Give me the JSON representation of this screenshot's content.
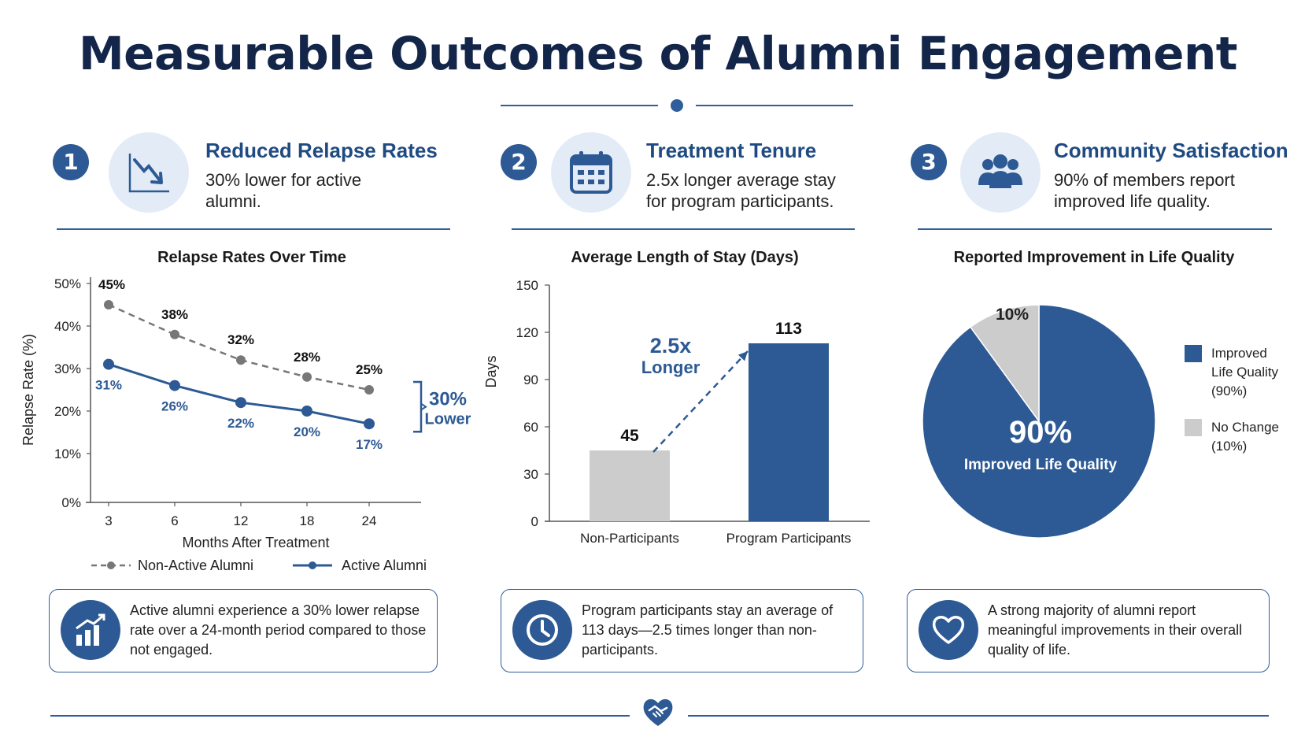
{
  "title": "Measurable Outcomes of Alumni Engagement",
  "colors": {
    "primary": "#2d5a94",
    "navy": "#13264a",
    "gray": "#cccccc",
    "dashed": "#777777"
  },
  "sections": [
    {
      "number": "1",
      "icon": "trend-down-icon",
      "heading": "Reduced Relapse Rates",
      "text": "30% lower for active alumni.",
      "note": "Active alumni experience a 30% lower relapse rate over a 24-month period compared to those not engaged.",
      "note_icon": "bar-chart-up-icon"
    },
    {
      "number": "2",
      "icon": "calendar-icon",
      "heading": "Treatment Tenure",
      "text": "2.5x longer average stay for program participants.",
      "note": "Program participants stay an average of 113 days—2.5 times longer than non-participants.",
      "note_icon": "clock-icon"
    },
    {
      "number": "3",
      "icon": "people-group-icon",
      "heading": "Community Satisfaction",
      "text": "90% of members report improved life quality.",
      "note": "A strong majority of alumni report meaningful improvements in their overall quality of life.",
      "note_icon": "heart-icon"
    }
  ],
  "footer_icon": "heart-handshake-icon",
  "chart_data": [
    {
      "type": "line",
      "title": "Relapse Rates Over Time",
      "xlabel": "Months After Treatment",
      "ylabel": "Relapse Rate (%)",
      "categories": [
        "3",
        "6",
        "12",
        "18",
        "24"
      ],
      "ylim": [
        0,
        50
      ],
      "yticks": [
        "0%",
        "10%",
        "20%",
        "30%",
        "40%",
        "50%"
      ],
      "series": [
        {
          "name": "Non-Active Alumni",
          "values": [
            45,
            38,
            32,
            28,
            25
          ],
          "labels": [
            "45%",
            "38%",
            "32%",
            "28%",
            "25%"
          ],
          "color": "#777777",
          "style": "dashed"
        },
        {
          "name": "Active Alumni",
          "values": [
            31,
            26,
            22,
            20,
            17
          ],
          "labels": [
            "31%",
            "26%",
            "22%",
            "20%",
            "17%"
          ],
          "color": "#2d5a94",
          "style": "solid"
        }
      ],
      "annotation": {
        "value": "30%",
        "text": "Lower"
      },
      "legend": "bottom"
    },
    {
      "type": "bar",
      "title": "Average Length of Stay (Days)",
      "ylabel": "Days",
      "categories": [
        "Non-Participants",
        "Program Participants"
      ],
      "values": [
        45,
        113
      ],
      "value_labels": [
        "45",
        "113"
      ],
      "colors": [
        "#cccccc",
        "#2d5a94"
      ],
      "ylim": [
        0,
        150
      ],
      "yticks": [
        "0",
        "30",
        "60",
        "90",
        "120",
        "150"
      ],
      "annotation": {
        "value": "2.5x",
        "text": "Longer"
      }
    },
    {
      "type": "pie",
      "title": "Reported Improvement in Life Quality",
      "slices": [
        {
          "label": "Improved Life Quality (90%)",
          "value": 90,
          "color": "#2d5a94"
        },
        {
          "label": "No Change (10%)",
          "value": 10,
          "color": "#cccccc"
        }
      ],
      "center_value": "90%",
      "center_text": "Improved Life Quality",
      "small_label": "10%",
      "legend_items": [
        {
          "lines": [
            "Improved",
            "Life Quality",
            "(90%)"
          ],
          "color": "#2d5a94"
        },
        {
          "lines": [
            "No Change",
            "(10%)"
          ],
          "color": "#cccccc"
        }
      ],
      "legend": "right"
    }
  ]
}
